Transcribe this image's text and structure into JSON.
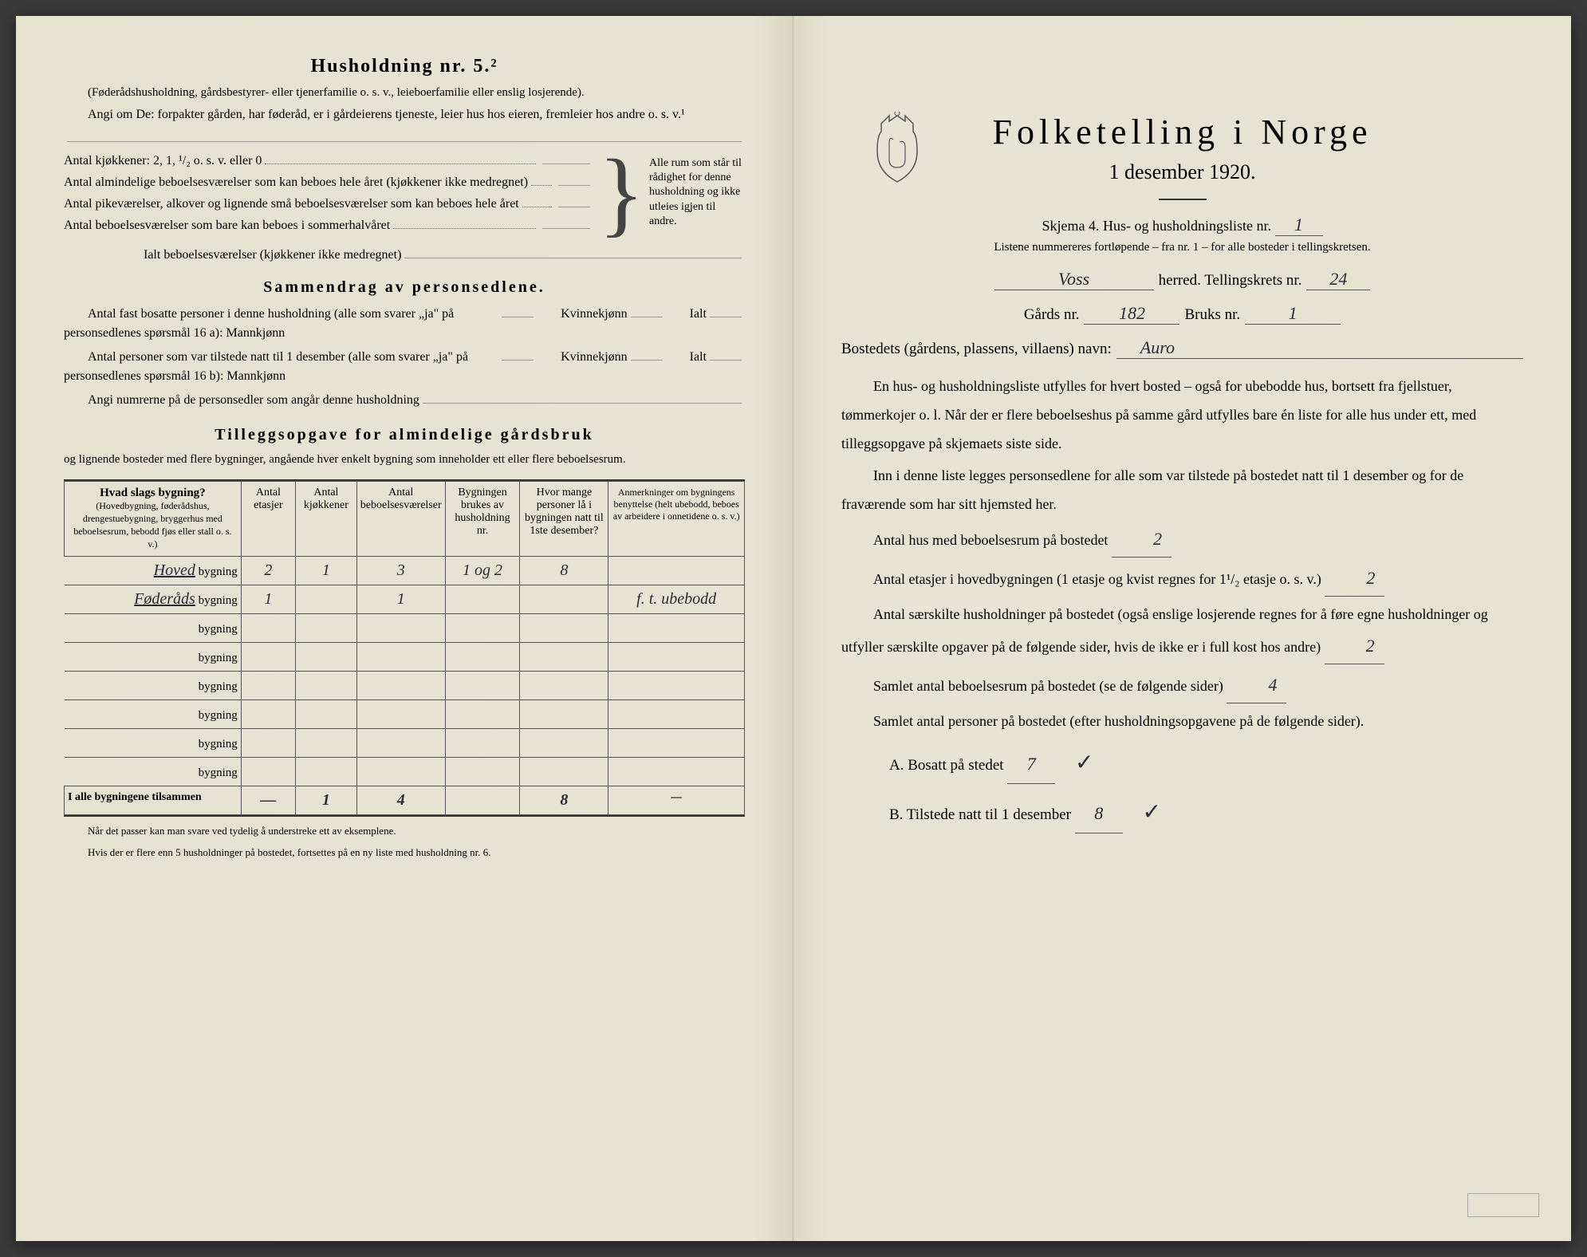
{
  "left": {
    "heading": "Husholdning nr. 5.²",
    "intro1": "(Føderådshusholdning, gårdsbestyrer- eller tjenerfamilie o. s. v., leieboerfamilie eller enslig losjerende).",
    "intro2": "Angi om De: forpakter gården, har føderåd, er i gårdeierens tjeneste, leier hus hos eieren, fremleier hos andre o. s. v.¹",
    "kitchens_label": "Antal kjøkkener: 2, 1, ¹/₂ o. s. v. eller 0",
    "rooms1": "Antal almindelige beboelsesværelser som kan beboes hele året (kjøkkener ikke medregnet)",
    "rooms2": "Antal pikeværelser, alkover og lignende små beboelsesværelser som kan beboes hele året",
    "rooms3": "Antal beboelsesværelser som bare kan beboes i sommerhalvåret",
    "brace_text": "Alle rum som står til rådighet for denne husholdning og ikke utleies igjen til andre.",
    "ialt_label": "Ialt beboelsesværelser (kjøkkener ikke medregnet)",
    "sammendrag_heading": "Sammendrag av personsedlene.",
    "samm1": "Antal fast bosatte personer i denne husholdning (alle som svarer „ja\" på personsedlenes spørsmål 16 a): Mannkjønn",
    "kvinne": "Kvinnekjønn",
    "ialt": "Ialt",
    "samm2": "Antal personer som var tilstede natt til 1 desember (alle som svarer „ja\" på personsedlenes spørsmål 16 b): Mannkjønn",
    "samm3_label": "Angi numrerne på de personsedler som angår denne husholdning",
    "tillegg_heading": "Tilleggsopgave for almindelige gårdsbruk",
    "tillegg_sub": "og lignende bosteder med flere bygninger, angående hver enkelt bygning som inneholder ett eller flere beboelsesrum.",
    "table": {
      "headers": {
        "c1_title": "Hvad slags bygning?",
        "c1_sub": "(Hovedbygning, føderådshus, drengestuebygning, bryggerhus med beboelsesrum, bebodd fjøs eller stall o. s. v.)",
        "c2": "Antal etasjer",
        "c3": "Antal kjøkkener",
        "c4": "Antal beboelsesværelser",
        "c5": "Bygningen brukes av husholdning nr.",
        "c6": "Hvor mange personer lå i bygningen natt til 1ste desember?",
        "c7": "Anmerkninger om bygningens benyttelse (helt ubebodd, beboes av arbeidere i onnetidene o. s. v.)"
      },
      "rows": [
        {
          "label_hw": "Hoved",
          "label": "bygning",
          "c2": "2",
          "c3": "1",
          "c4": "3",
          "c5": "1 og 2",
          "c6": "8",
          "c7": ""
        },
        {
          "label_hw": "Føderåds",
          "label": "bygning",
          "c2": "1",
          "c3": "",
          "c4": "1",
          "c5": "",
          "c6": "",
          "c7": "f. t. ubebodd"
        },
        {
          "label_hw": "",
          "label": "bygning"
        },
        {
          "label_hw": "",
          "label": "bygning"
        },
        {
          "label_hw": "",
          "label": "bygning"
        },
        {
          "label_hw": "",
          "label": "bygning"
        },
        {
          "label_hw": "",
          "label": "bygning"
        },
        {
          "label_hw": "",
          "label": "bygning"
        }
      ],
      "totals": {
        "label": "I alle bygningene tilsammen",
        "c2": "—",
        "c3": "1",
        "c4": "4",
        "c5": "",
        "c6": "8",
        "c7": "—"
      }
    },
    "footnote1": "Når det passer kan man svare ved tydelig å understreke ett av eksemplene.",
    "footnote2": "Hvis der er flere enn 5 husholdninger på bostedet, fortsettes på en ny liste med husholdning nr. 6."
  },
  "right": {
    "title": "Folketelling i Norge",
    "date": "1 desember 1920.",
    "skjema_line": "Skjema 4.  Hus- og husholdningsliste nr.",
    "skjema_nr": "1",
    "listene_note": "Listene nummereres fortløpende – fra nr. 1 – for alle bosteder i tellingskretsen.",
    "herred_value": "Voss",
    "herred_label": "herred.  Tellingskrets nr.",
    "tellingskrets_nr": "24",
    "gards_label": "Gårds nr.",
    "gards_nr": "182",
    "bruks_label": "Bruks nr.",
    "bruks_nr": "1",
    "bosted_label": "Bostedets (gårdens, plassens, villaens) navn:",
    "bosted_navn": "Auro",
    "para1": "En hus- og husholdningsliste utfylles for hvert bosted – også for ubebodde hus, bortsett fra fjellstuer, tømmerkojer o. l.  Når der er flere beboelseshus på samme gård utfylles bare én liste for alle hus under ett, med tilleggsopgave på skjemaets siste side.",
    "para2": "Inn i denne liste legges personsedlene for alle som var tilstede på bostedet natt til 1 desember og for de fraværende som har sitt hjemsted her.",
    "q1": "Antal hus med beboelsesrum på bostedet",
    "q1_val": "2",
    "q2a": "Antal etasjer i hovedbygningen (1 etasje og kvist regnes for 1¹/₂ etasje o. s. v.)",
    "q2_val": "2",
    "q3": "Antal særskilte husholdninger på bostedet (også enslige losjerende regnes for å føre egne husholdninger og utfyller særskilte opgaver på de følgende sider, hvis de ikke er i full kost hos andre)",
    "q3_val": "2",
    "q4": "Samlet antal beboelsesrum på bostedet (se de følgende sider)",
    "q4_val": "4",
    "q5": "Samlet antal personer på bostedet (efter husholdningsopgavene på de følgende sider).",
    "qA_label": "A.  Bosatt på stedet",
    "qA_val": "7",
    "qB_label": "B.  Tilstede natt til 1 desember",
    "qB_val": "8"
  }
}
